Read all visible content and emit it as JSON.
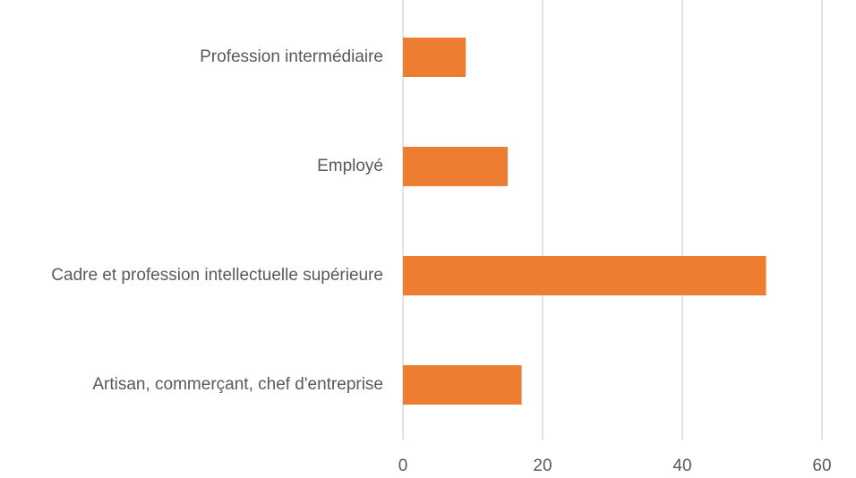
{
  "chart_data": {
    "type": "bar",
    "orientation": "horizontal",
    "categories": [
      "Profession intermédiaire",
      "Employé",
      "Cadre et profession intellectuelle supérieure",
      "Artisan, commerçant, chef d'entreprise"
    ],
    "values": [
      9,
      15,
      52,
      17
    ],
    "color": "#ed7d31",
    "xlim": [
      0,
      60
    ],
    "xticks": [
      0,
      20,
      40,
      60
    ],
    "grid": true
  }
}
